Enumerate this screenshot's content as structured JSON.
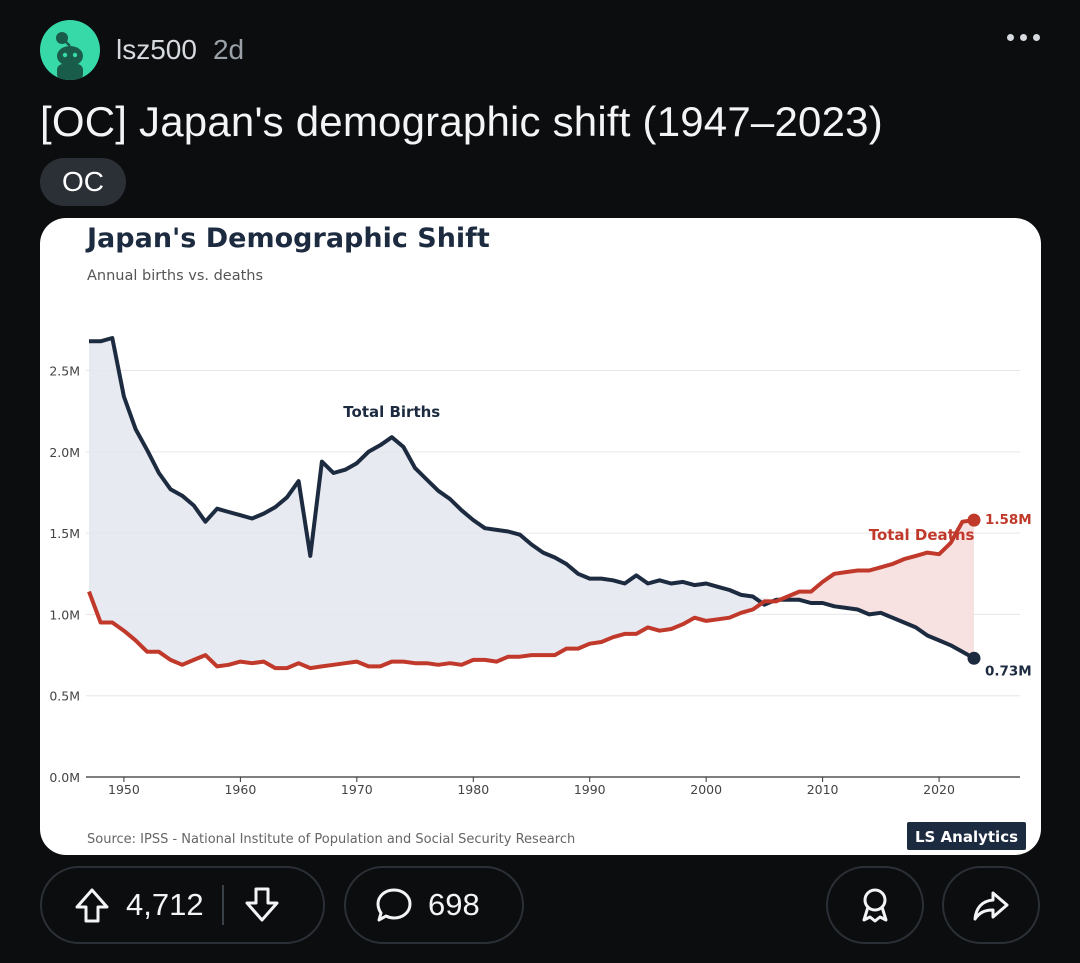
{
  "post": {
    "username": "lsz500",
    "age": "2d",
    "title": "[OC] Japan's demographic shift (1947–2023)",
    "flair": "OC",
    "upvotes": "4,712",
    "comments": "698"
  },
  "chart_data": {
    "type": "line",
    "title": "Japan's Demographic Shift",
    "subtitle": "Annual births vs. deaths",
    "source": "Source: IPSS - National Institute of Population and Social Security Research",
    "watermark": "LS Analytics",
    "xlim": [
      1947,
      2023
    ],
    "xticks": [
      1950,
      1960,
      1970,
      1980,
      1990,
      2000,
      2010,
      2020
    ],
    "ylim": [
      0,
      2.7
    ],
    "yticks": [
      0,
      0.5,
      1.0,
      1.5,
      2.0,
      2.5
    ],
    "ytick_labels": [
      "0.0M",
      "0.5M",
      "1.0M",
      "1.5M",
      "2.0M",
      "2.5M"
    ],
    "grid": true,
    "colors": {
      "births": "#1d2b40",
      "deaths": "#c0392b",
      "title": "#1d2b40"
    },
    "series": [
      {
        "name": "Total Births",
        "end_label": "0.73M",
        "x": [
          1947,
          1948,
          1949,
          1950,
          1951,
          1952,
          1953,
          1954,
          1955,
          1956,
          1957,
          1958,
          1959,
          1960,
          1961,
          1962,
          1963,
          1964,
          1965,
          1966,
          1967,
          1968,
          1969,
          1970,
          1971,
          1972,
          1973,
          1974,
          1975,
          1976,
          1977,
          1978,
          1979,
          1980,
          1981,
          1982,
          1983,
          1984,
          1985,
          1986,
          1987,
          1988,
          1989,
          1990,
          1991,
          1992,
          1993,
          1994,
          1995,
          1996,
          1997,
          1998,
          1999,
          2000,
          2001,
          2002,
          2003,
          2004,
          2005,
          2006,
          2007,
          2008,
          2009,
          2010,
          2011,
          2012,
          2013,
          2014,
          2015,
          2016,
          2017,
          2018,
          2019,
          2020,
          2021,
          2022,
          2023
        ],
        "values": [
          2.68,
          2.68,
          2.7,
          2.34,
          2.14,
          2.01,
          1.87,
          1.77,
          1.73,
          1.67,
          1.57,
          1.65,
          1.63,
          1.61,
          1.59,
          1.62,
          1.66,
          1.72,
          1.82,
          1.36,
          1.94,
          1.87,
          1.89,
          1.93,
          2.0,
          2.04,
          2.09,
          2.03,
          1.9,
          1.83,
          1.76,
          1.71,
          1.64,
          1.58,
          1.53,
          1.52,
          1.51,
          1.49,
          1.43,
          1.38,
          1.35,
          1.31,
          1.25,
          1.22,
          1.22,
          1.21,
          1.19,
          1.24,
          1.19,
          1.21,
          1.19,
          1.2,
          1.18,
          1.19,
          1.17,
          1.15,
          1.12,
          1.11,
          1.06,
          1.09,
          1.09,
          1.09,
          1.07,
          1.07,
          1.05,
          1.04,
          1.03,
          1.0,
          1.01,
          0.98,
          0.95,
          0.92,
          0.87,
          0.84,
          0.81,
          0.77,
          0.73
        ]
      },
      {
        "name": "Total Deaths",
        "end_label": "1.58M",
        "x": [
          1947,
          1948,
          1949,
          1950,
          1951,
          1952,
          1953,
          1954,
          1955,
          1956,
          1957,
          1958,
          1959,
          1960,
          1961,
          1962,
          1963,
          1964,
          1965,
          1966,
          1967,
          1968,
          1969,
          1970,
          1971,
          1972,
          1973,
          1974,
          1975,
          1976,
          1977,
          1978,
          1979,
          1980,
          1981,
          1982,
          1983,
          1984,
          1985,
          1986,
          1987,
          1988,
          1989,
          1990,
          1991,
          1992,
          1993,
          1994,
          1995,
          1996,
          1997,
          1998,
          1999,
          2000,
          2001,
          2002,
          2003,
          2004,
          2005,
          2006,
          2007,
          2008,
          2009,
          2010,
          2011,
          2012,
          2013,
          2014,
          2015,
          2016,
          2017,
          2018,
          2019,
          2020,
          2021,
          2022,
          2023
        ],
        "values": [
          1.14,
          0.95,
          0.95,
          0.9,
          0.84,
          0.77,
          0.77,
          0.72,
          0.69,
          0.72,
          0.75,
          0.68,
          0.69,
          0.71,
          0.7,
          0.71,
          0.67,
          0.67,
          0.7,
          0.67,
          0.68,
          0.69,
          0.7,
          0.71,
          0.68,
          0.68,
          0.71,
          0.71,
          0.7,
          0.7,
          0.69,
          0.7,
          0.69,
          0.72,
          0.72,
          0.71,
          0.74,
          0.74,
          0.75,
          0.75,
          0.75,
          0.79,
          0.79,
          0.82,
          0.83,
          0.86,
          0.88,
          0.88,
          0.92,
          0.9,
          0.91,
          0.94,
          0.98,
          0.96,
          0.97,
          0.98,
          1.01,
          1.03,
          1.08,
          1.08,
          1.11,
          1.14,
          1.14,
          1.2,
          1.25,
          1.26,
          1.27,
          1.27,
          1.29,
          1.31,
          1.34,
          1.36,
          1.38,
          1.37,
          1.44,
          1.57,
          1.58
        ]
      }
    ]
  }
}
